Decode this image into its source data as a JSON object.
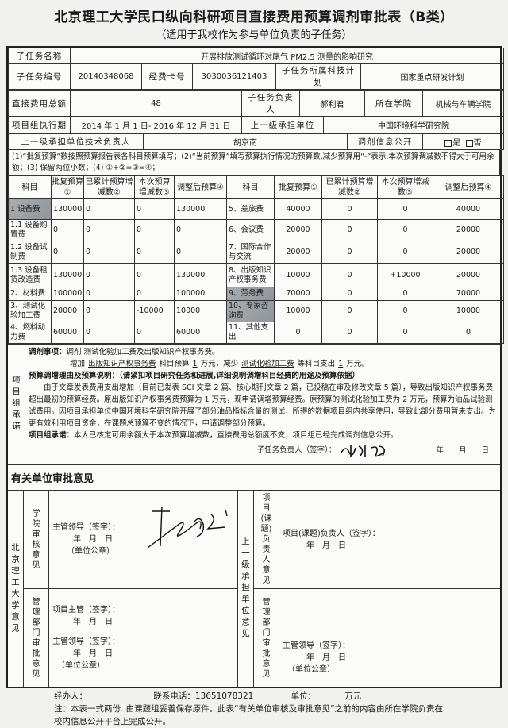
{
  "header": {
    "title": "北京理工大学民口纵向科研项目直接费用预算调剂审批表（B类）",
    "subtitle": "（适用于我校作为参与单位负责的子任务）"
  },
  "info": {
    "name_label": "子任务名称",
    "name_value": "开展排放测试循环对尾气 PM2.5 测量的影响研究",
    "number_label": "子任务编号",
    "number_value": "20140348068",
    "card_label": "经费卡号",
    "card_value": "3030036121403",
    "plan_label": "子任务所属科技计划",
    "plan_value": "国家重点研发计划",
    "total_label": "直接费用总额",
    "total_value": "48",
    "leader_label": "子任务负责人",
    "leader_value": "郝利君",
    "college_label": "所在学院",
    "college_value": "机械与车辆学院",
    "period_label": "项目组执行期",
    "period_value": "2014 年 1 月 1 日- 2016 年 12 月 31 日",
    "upper_label": "上一级承担单位",
    "upper_value": "中国环境科学研究院",
    "upper_tech_label": "上一级承担单位技术负责人",
    "upper_tech_value": "胡京南",
    "public_label": "调剂信息公开",
    "yes_label": "是",
    "no_label": "否"
  },
  "instructions": "(1)“批复预算”数按照预算报告表各科目预算填写；(2)“当前预算”填写预算执行情况的预算数,减少预算用“-”表示,本次预算调减数不得大于可用余额；(3) 保留两位小数；(4) ①+②=③=④；",
  "budget": {
    "headers": [
      "科目",
      "批复预算①",
      "已累计预算增减数②",
      "本次预算增减数③",
      "调整后预算④",
      "科目",
      "批复预算①",
      "已累计预算增减数②",
      "本次预算增减数③",
      "调整后预算④"
    ],
    "left": [
      {
        "name": "1 设备费",
        "approved": "130000",
        "cumulative": "0",
        "current": "0",
        "adjusted": "130000",
        "shaded": true
      },
      {
        "name": "1.1 设备购置费",
        "approved": "0",
        "cumulative": "0",
        "current": "0",
        "adjusted": "0"
      },
      {
        "name": "1.2 设备试制费",
        "approved": "0",
        "cumulative": "0",
        "current": "0",
        "adjusted": "0"
      },
      {
        "name": "1.3 设备租赁改造费",
        "approved": "130000",
        "cumulative": "0",
        "current": "0",
        "adjusted": "130000"
      },
      {
        "name": "2、材料费",
        "approved": "100000",
        "cumulative": "0",
        "current": "0",
        "adjusted": "100000"
      },
      {
        "name": "3、测试化验加工费",
        "approved": "20000",
        "cumulative": "0",
        "current": "-10000",
        "adjusted": "10000"
      },
      {
        "name": "4、燃料动力费",
        "approved": "60000",
        "cumulative": "0",
        "current": "0",
        "adjusted": "60000"
      }
    ],
    "right": [
      {
        "name": "5、差旅费",
        "approved": "40000",
        "cumulative": "0",
        "current": "0",
        "adjusted": "40000"
      },
      {
        "name": "6、会议费",
        "approved": "20000",
        "cumulative": "0",
        "current": "0",
        "adjusted": "20000"
      },
      {
        "name": "7、国际合作与交流",
        "approved": "20000",
        "cumulative": "0",
        "current": "0",
        "adjusted": "20000"
      },
      {
        "name": "8、出版知识产权事务费",
        "approved": "10000",
        "cumulative": "0",
        "current": "+10000",
        "adjusted": "20000"
      },
      {
        "name": "9、劳务费",
        "approved": "70000",
        "cumulative": "0",
        "current": "0",
        "adjusted": "70000",
        "shaded": true
      },
      {
        "name": "10、专家咨询费",
        "approved": "10000",
        "cumulative": "0",
        "current": "0",
        "adjusted": "10000",
        "shaded": true
      },
      {
        "name": "11、其他支出",
        "approved": "0",
        "cumulative": "0",
        "current": "0",
        "adjusted": "0"
      }
    ]
  },
  "commitment": {
    "side_label": "项目组承诺",
    "matter_label": "调剂事项：",
    "matter_text": "调剂 测试化验加工费及出版知识产权事务费。",
    "inc_prefix": "增加",
    "inc_item": "出版知识产权事务费",
    "inc_mid": "科目预算",
    "inc_amount": "1",
    "inc_unit": "万元，减少",
    "dec_item": "测试化验加工费",
    "dec_mid": "等科目支出",
    "dec_amount": "1",
    "dec_unit": "万元。",
    "reason_label": "预算调增理由及预算说明：（请紧扣项目研究任务和进展,详细说明调增科目经费的用途及预算依据）",
    "reason_text": "由于文章发表费用支出增加（目前已发表 SCI 文章 2 篇、核心期刊文章 2 篇，已投稿在审及修改文章 5 篇），导致出版知识产权事务费超出最初的预算经费。原出版知识产权事务费预算为 1 万元，现申请调增预算经费。原预算的测试化验加工费为 2 万元，预算为油品试验测试费用。因项目承担单位中国环境科学研究院开展了部分油品指标含量的测试，所得的数据项目组内共享使用，导致此部分费用暂未支出。为更有效利用项目资金，在课题总预算不变的情况下，申请调整部分预算。",
    "promise_label": "项目组承诺：",
    "promise_text": "本人已核定可用余额大于本次预算增减数，直接费用总额度不变；项目组已经完成调剂信息公开。",
    "sign_label": "子任务负责人（签字）：",
    "signature": "郝利君",
    "date_text": "年　　月　　日"
  },
  "approval": {
    "heading": "有关单位审批意见",
    "bit_label": "北京理工大学意见",
    "college_label": "学院审核意见",
    "college_sign": "主管领导（签字）：",
    "college_date": "年　月　日",
    "college_seal": "（单位公章）",
    "mgmt_label": "管理部门审批意见",
    "mgmt_sign1": "项目主管（签字）：",
    "mgmt_date1": "年　月　日",
    "mgmt_sign2": "主管领导（签字）：",
    "mgmt_date2": "年　月　日",
    "mgmt_seal": "（单位公章）",
    "upper_label": "上一级承担单位意见",
    "pi_label": "项目(课题)负责人意见",
    "pi_sign": "项目(课题)负责人（签字）：",
    "pi_date": "年　月　日",
    "upper_mgmt_label": "管理部门审批意见",
    "upper_mgmt_sign": "主管领导（签字）：",
    "upper_mgmt_date": "年　月　日",
    "upper_mgmt_seal": "（单位公章）"
  },
  "footer": {
    "handler_label": "经办人：",
    "phone_label": "联系电话：",
    "phone_value": "13651078321",
    "unit_label": "单位：",
    "unit_value": "万元",
    "note": "注：本表一式两份. 由课题组妥善保存原件。此表“有关单位审核及审批意见”之前的内容由所在学院负责在校内信息公开平台上完成公开。"
  }
}
